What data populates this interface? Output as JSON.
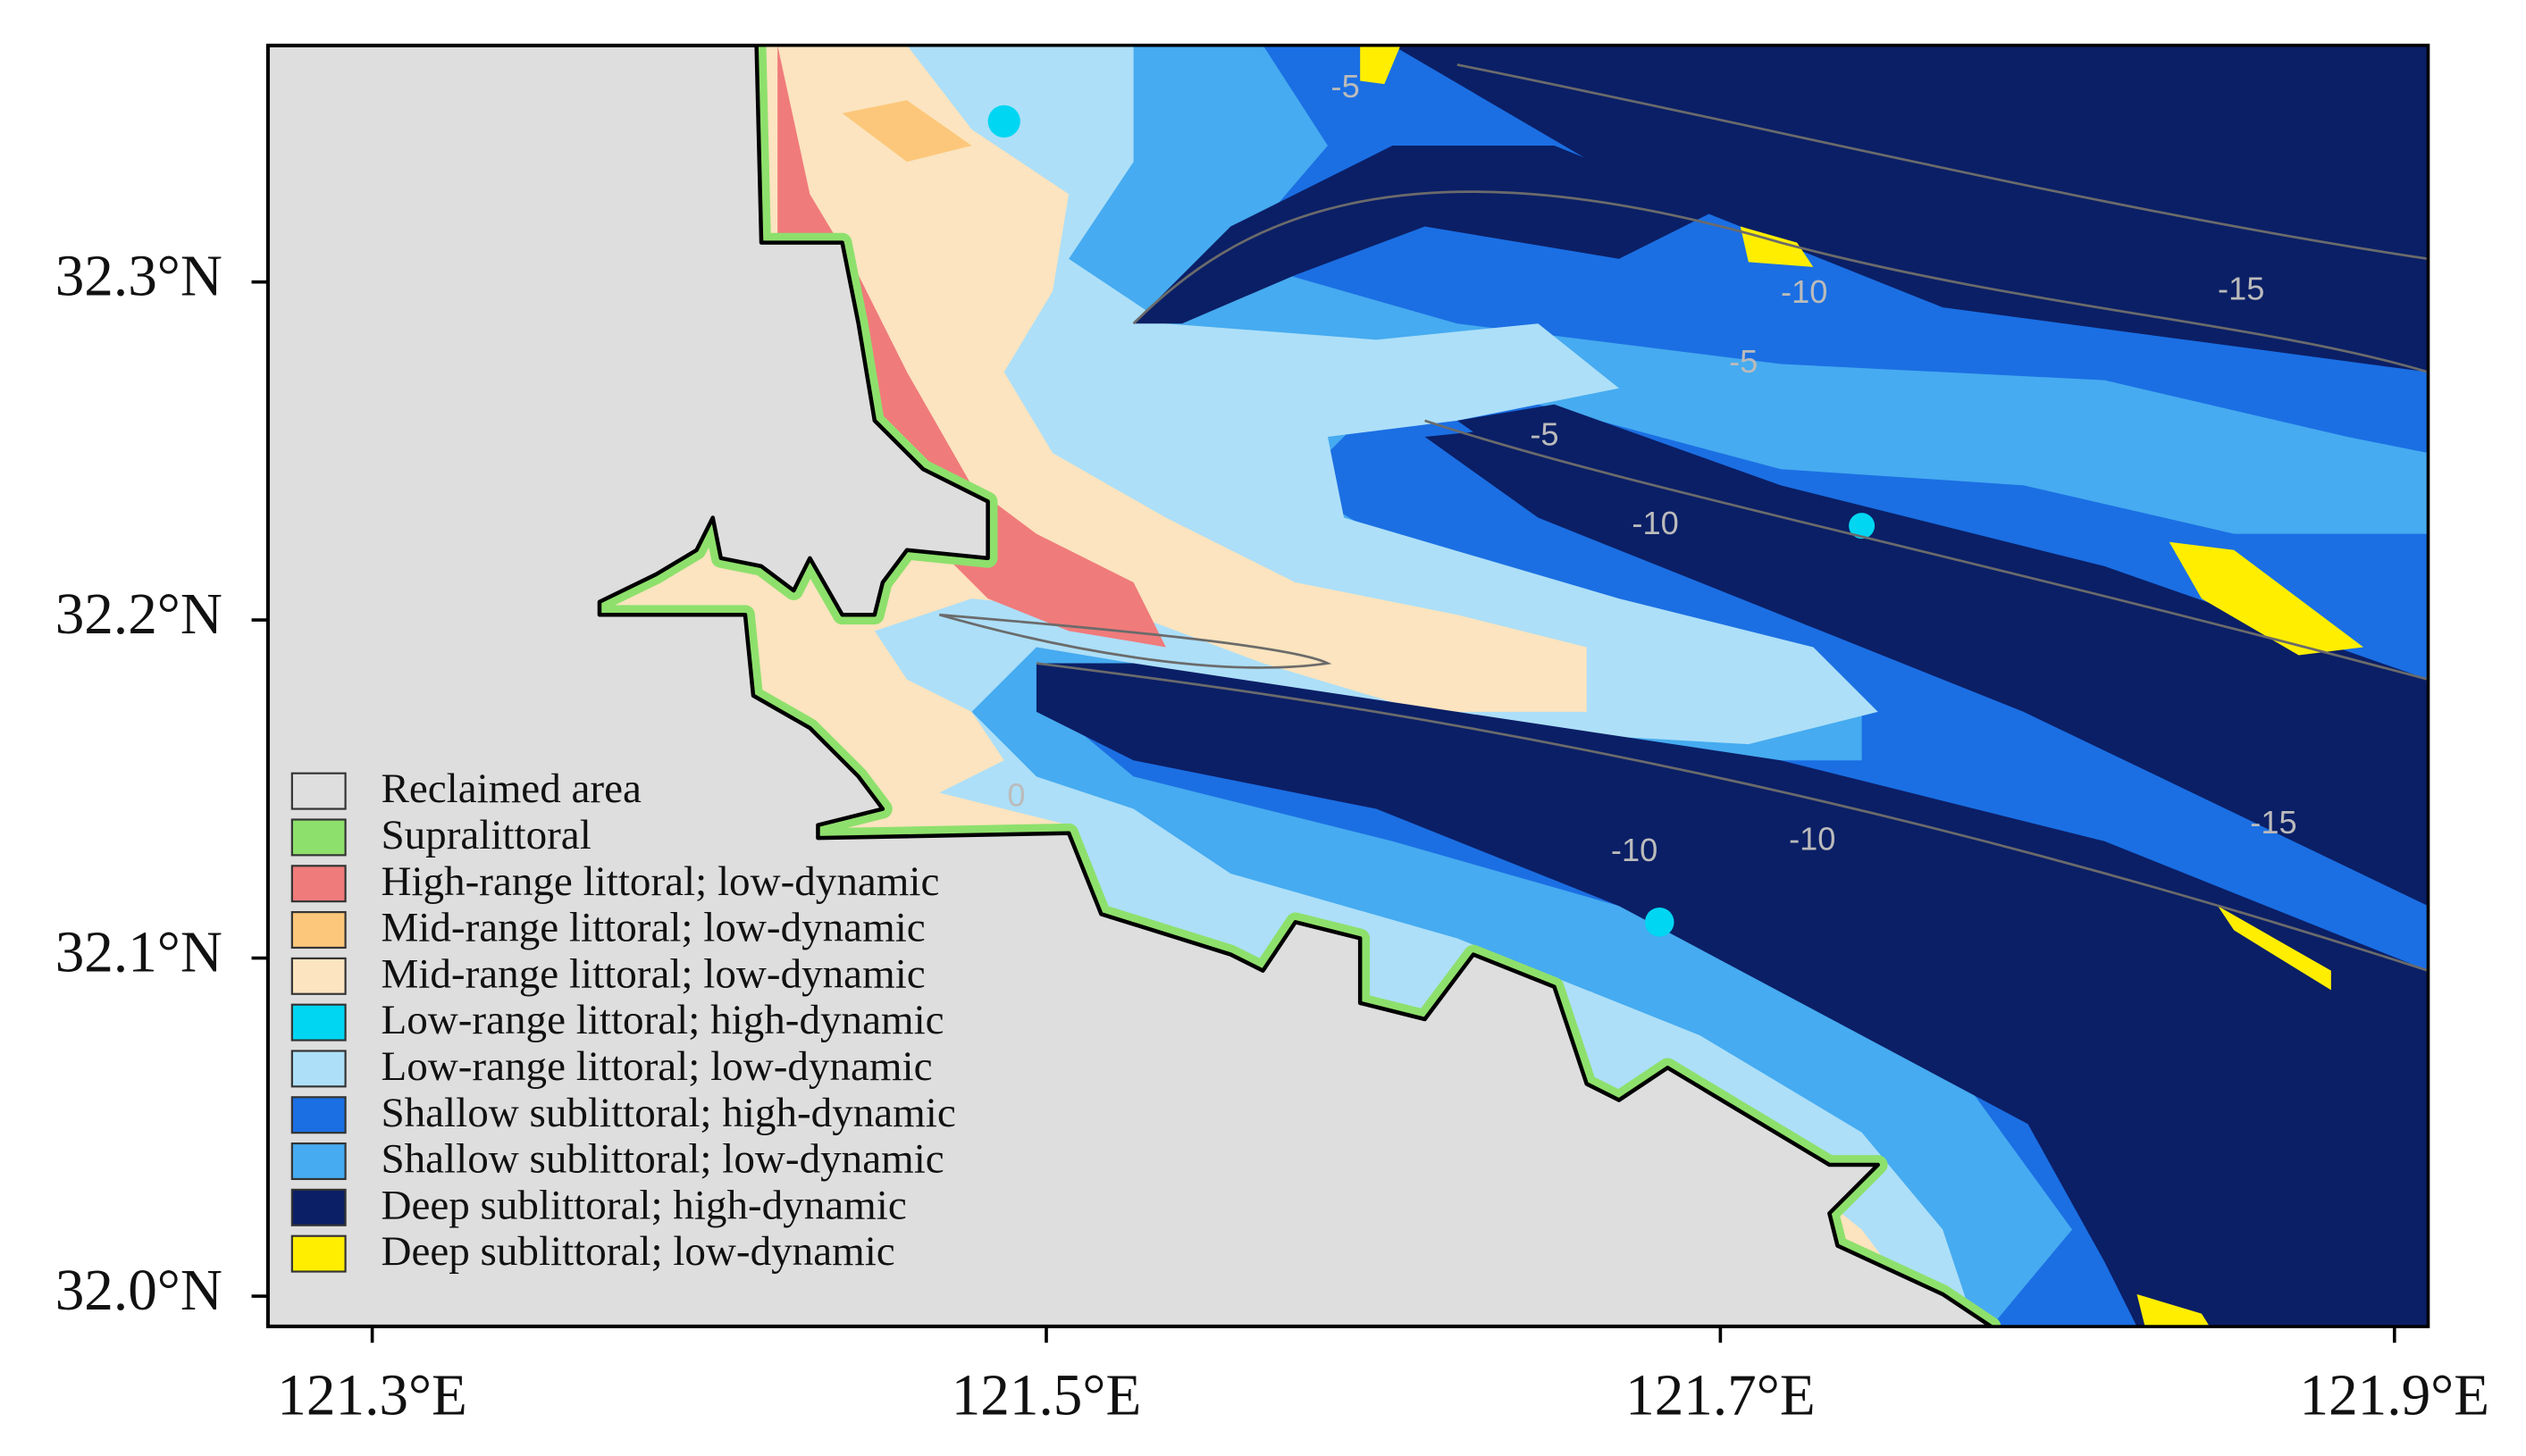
{
  "map": {
    "xlim": [
      121.269,
      121.91
    ],
    "ylim": [
      31.991,
      32.37
    ],
    "xticks": [
      {
        "value": 121.3,
        "label": "121.3°E"
      },
      {
        "value": 121.5,
        "label": "121.5°E"
      },
      {
        "value": 121.7,
        "label": "121.7°E"
      },
      {
        "value": 121.9,
        "label": "121.9°E"
      }
    ],
    "yticks": [
      {
        "value": 32.0,
        "label": "32.0°N"
      },
      {
        "value": 32.1,
        "label": "32.1°N"
      },
      {
        "value": 32.2,
        "label": "32.2°N"
      },
      {
        "value": 32.3,
        "label": "32.3°N"
      }
    ],
    "legend": [
      {
        "label": "Reclaimed area",
        "color": "#dedede"
      },
      {
        "label": "Supralittoral",
        "color": "#8ee06c"
      },
      {
        "label": "High-range littoral; low-dynamic",
        "color": "#f07b7b"
      },
      {
        "label": "Mid-range littoral; low-dynamic",
        "color": "#fcc77a"
      },
      {
        "label": "Mid-range littoral; low-dynamic",
        "color": "#fbe4bf"
      },
      {
        "label": "Low-range littoral; high-dynamic",
        "color": "#00d6f2"
      },
      {
        "label": "Low-range littoral; low-dynamic",
        "color": "#addff8"
      },
      {
        "label": "Shallow sublittoral; high-dynamic",
        "color": "#1b6fe3"
      },
      {
        "label": "Shallow sublittoral; low-dynamic",
        "color": "#46abf0"
      },
      {
        "label": "Deep sublittoral; high-dynamic",
        "color": "#0b1f66"
      },
      {
        "label": "Deep sublittoral; low-dynamic",
        "color": "#ffee00"
      }
    ],
    "contour_labels": [
      "-5",
      "-10",
      "-15",
      "-5",
      "-5",
      "-10",
      "-10",
      "-10",
      "-15",
      "0"
    ]
  }
}
